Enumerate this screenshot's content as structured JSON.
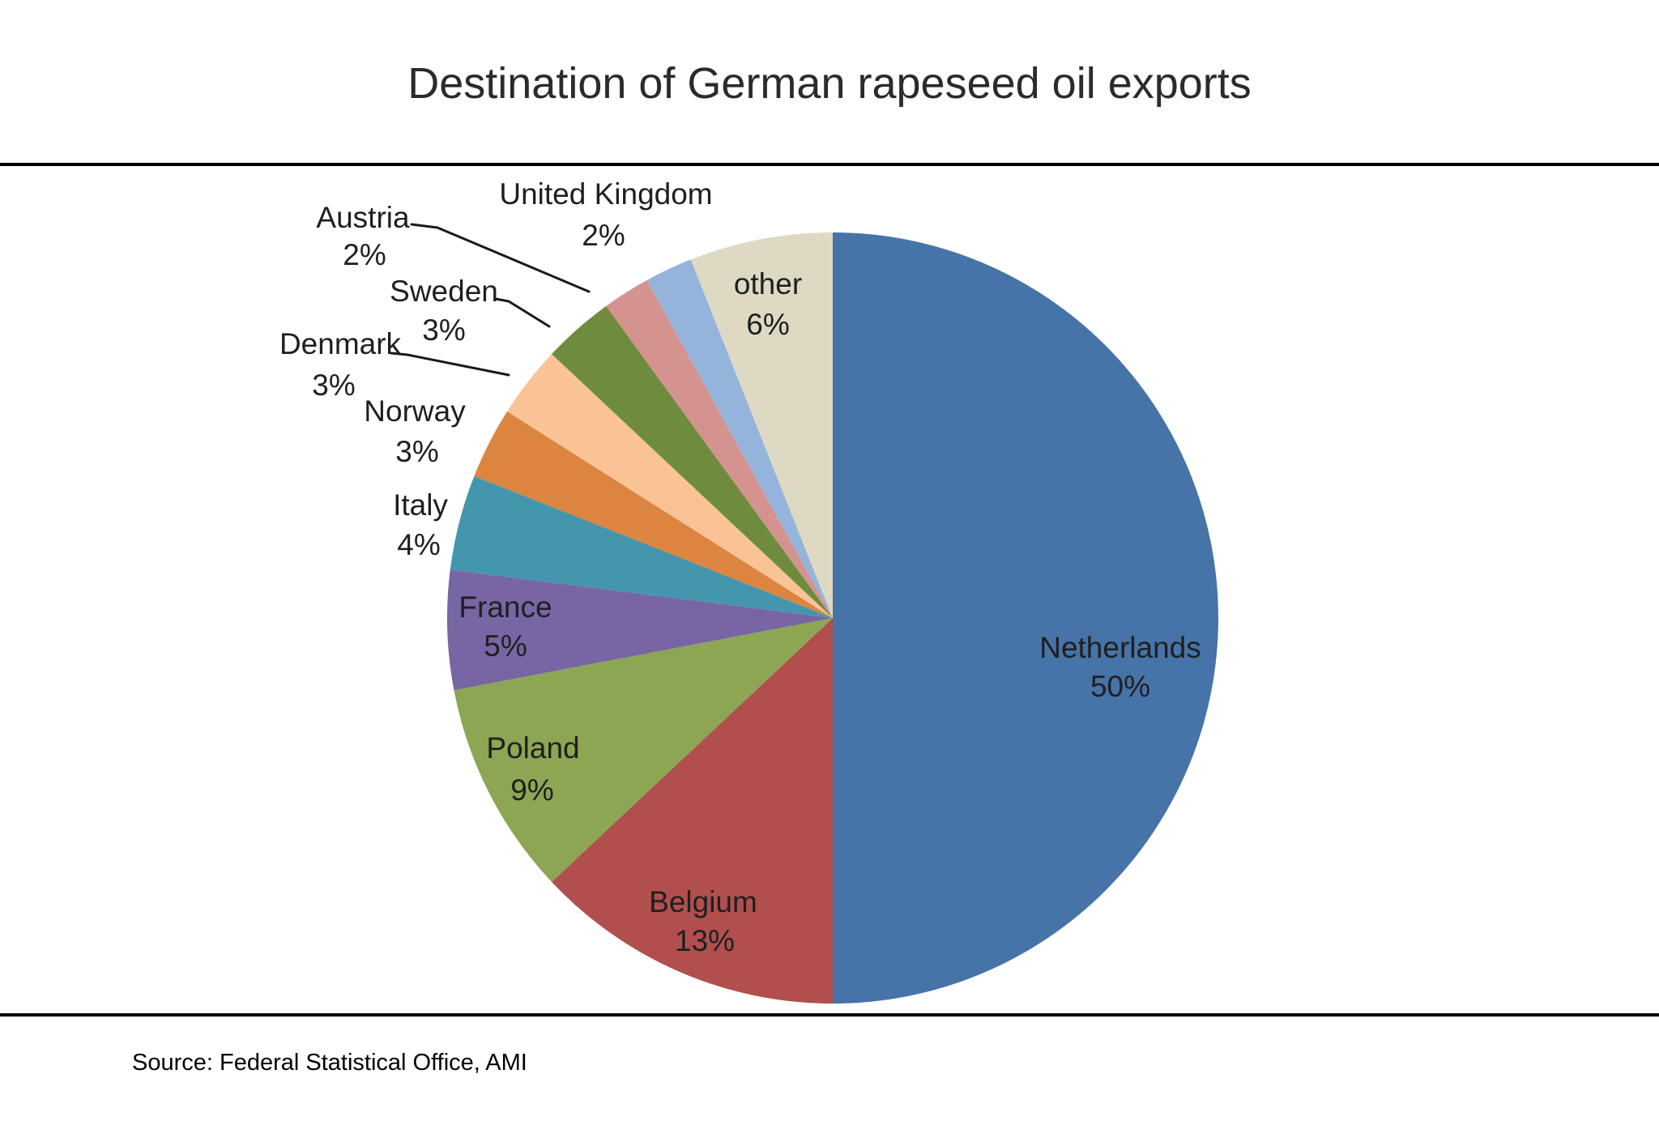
{
  "page": {
    "title": "Destination of German rapeseed oil exports",
    "source": "Source: Federal Statistical Office, AMI"
  },
  "chart_data": {
    "type": "pie",
    "title": "Destination of German rapeseed oil exports",
    "unit": "%",
    "direction": "clockwise",
    "start_angle": "12 o'clock",
    "legend": "none (labels on/near slices)",
    "categories": [
      "Netherlands",
      "Belgium",
      "Poland",
      "France",
      "Italy",
      "Norway",
      "Denmark",
      "Sweden",
      "Austria",
      "United Kingdom",
      "other"
    ],
    "values": [
      50,
      13,
      9,
      5,
      4,
      3,
      3,
      3,
      2,
      2,
      6
    ],
    "slices": [
      {
        "label": "Netherlands",
        "value": 50,
        "pct_label": "50%",
        "color": "#4673a8"
      },
      {
        "label": "Belgium",
        "value": 13,
        "pct_label": "13%",
        "color": "#b04f4e"
      },
      {
        "label": "Poland",
        "value": 9,
        "pct_label": "9%",
        "color": "#8ca653"
      },
      {
        "label": "France",
        "value": 5,
        "pct_label": "5%",
        "color": "#7765a4"
      },
      {
        "label": "Italy",
        "value": 4,
        "pct_label": "4%",
        "color": "#4496ac"
      },
      {
        "label": "Norway",
        "value": 3,
        "pct_label": "3%",
        "color": "#dc8540"
      },
      {
        "label": "Denmark",
        "value": 3,
        "pct_label": "3%",
        "color": "#f9c396"
      },
      {
        "label": "Sweden",
        "value": 3,
        "pct_label": "3%",
        "color": "#6f8c3e"
      },
      {
        "label": "Austria",
        "value": 2,
        "pct_label": "2%",
        "color": "#d59390"
      },
      {
        "label": "United Kingdom",
        "value": 2,
        "pct_label": "2%",
        "color": "#95b4db"
      },
      {
        "label": "other",
        "value": 6,
        "pct_label": "6%",
        "color": "#ddd9c3"
      }
    ],
    "source": "Source: Federal Statistical Office, AMI"
  }
}
